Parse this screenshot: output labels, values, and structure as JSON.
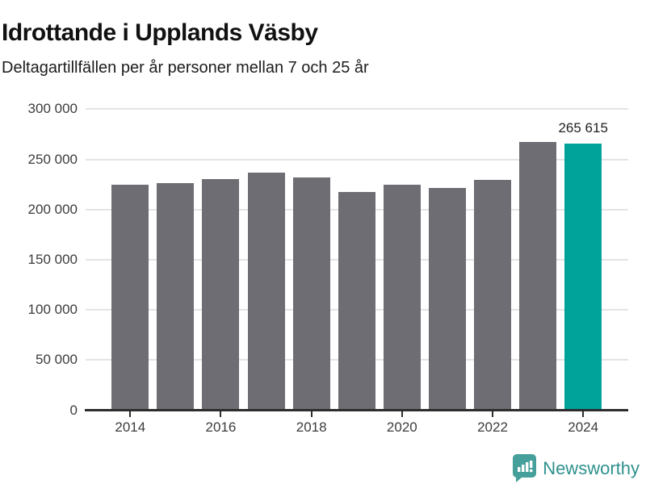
{
  "header": {
    "title": "Idrottande i Upplands Väsby",
    "subtitle": "Deltagartillfällen per år personer mellan 7 och 25 år"
  },
  "chart_data": {
    "type": "bar",
    "title": "Idrottande i Upplands Väsby",
    "subtitle": "Deltagartillfällen per år personer mellan 7 och 25 år",
    "categories": [
      2014,
      2015,
      2016,
      2017,
      2018,
      2019,
      2020,
      2021,
      2022,
      2023,
      2024
    ],
    "values": [
      224700,
      226300,
      230000,
      237000,
      232200,
      217200,
      224700,
      221300,
      229500,
      267600,
      265615
    ],
    "highlight_index": 10,
    "highlight_label": "265 615",
    "ylim": [
      0,
      300000
    ],
    "yticks": [
      0,
      50000,
      100000,
      150000,
      200000,
      250000,
      300000
    ],
    "ytick_labels": [
      "0",
      "50 000",
      "100 000",
      "150 000",
      "200 000",
      "250 000",
      "300 000"
    ],
    "xtick_years": [
      2014,
      2016,
      2018,
      2020,
      2022,
      2024
    ],
    "xtick_labels": [
      "2014",
      "2016",
      "2018",
      "2020",
      "2022",
      "2024"
    ],
    "xlabel": "",
    "ylabel": "",
    "grid": "horizontal",
    "legend": "none",
    "bar_color": "#6e6d73",
    "highlight_color": "#00a39a",
    "gridline_color": "#e4e4e4",
    "axis_color": "#2d2d2d"
  },
  "footer": {
    "brand": "Newsworthy",
    "logo_icon": "bar-chart-speech-bubble",
    "brand_color": "#2e918d",
    "icon_color": "#45a09b"
  }
}
